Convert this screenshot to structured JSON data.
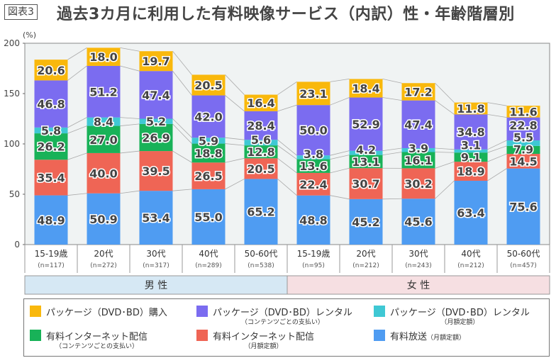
{
  "header": {
    "figure_label": "図表3",
    "title": "過去3カ月に利用した有料映像サービス（内訳）性・年齢階層別"
  },
  "chart_data": {
    "type": "bar",
    "stacked": true,
    "title": "過去3カ月に利用した有料映像サービス（内訳）性・年齢階層別",
    "ylabel": "(%)",
    "ylim": [
      0,
      200
    ],
    "yticks": [
      0,
      50,
      100,
      150,
      200
    ],
    "grid": false,
    "categories": [
      "15-19歳",
      "20代",
      "30代",
      "40代",
      "50-60代",
      "15-19歳",
      "20代",
      "30代",
      "40代",
      "50-60代"
    ],
    "sample_sizes": [
      "(n=117)",
      "(n=272)",
      "(n=317)",
      "(n=289)",
      "(n=538)",
      "(n=95)",
      "(n=212)",
      "(n=243)",
      "(n=212)",
      "(n=457)"
    ],
    "groups": [
      {
        "label": "男 性",
        "count": 5,
        "color": "#d6e8f4"
      },
      {
        "label": "女 性",
        "count": 5,
        "color": "#f6dfe2"
      }
    ],
    "legend_position": "bottom",
    "series": [
      {
        "name": "有料放送",
        "sub": "（月額定額）",
        "color": "#4f9cf2",
        "values": [
          48.9,
          50.9,
          53.4,
          55.0,
          65.2,
          48.8,
          45.2,
          45.6,
          63.4,
          75.6
        ]
      },
      {
        "name": "有料インターネット配信",
        "sub": "（月額定額）",
        "color": "#ef6555",
        "values": [
          35.4,
          40.0,
          39.5,
          26.5,
          20.5,
          22.4,
          30.7,
          30.2,
          18.9,
          14.5
        ]
      },
      {
        "name": "有料インターネット配信",
        "sub": "（コンテンツごとの支払い）",
        "color": "#18b258",
        "values": [
          26.2,
          27.0,
          26.9,
          18.8,
          12.8,
          13.6,
          13.1,
          16.1,
          9.1,
          7.9
        ]
      },
      {
        "name": "パッケージ（DVD･BD）レンタル",
        "sub": "（月額定額）",
        "color": "#3fc8d4",
        "values": [
          5.8,
          8.4,
          5.2,
          5.9,
          5.6,
          3.8,
          4.2,
          3.9,
          3.1,
          5.5
        ]
      },
      {
        "name": "パッケージ（DVD･BD）レンタル",
        "sub": "（コンテンツごとの支払い）",
        "color": "#7b6cf0",
        "values": [
          46.8,
          51.2,
          47.4,
          42.0,
          28.4,
          50.0,
          52.9,
          47.4,
          34.8,
          22.8
        ]
      },
      {
        "name": "パッケージ（DVD･BD）購入",
        "sub": "",
        "color": "#f9b80c",
        "values": [
          20.6,
          18.0,
          19.7,
          20.5,
          16.4,
          23.1,
          18.4,
          17.2,
          11.8,
          11.6
        ]
      }
    ]
  }
}
